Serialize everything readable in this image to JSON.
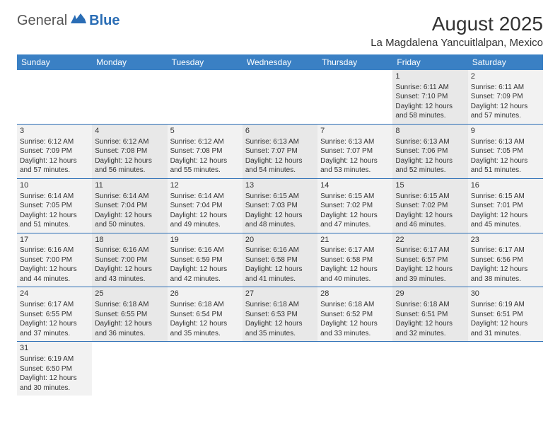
{
  "logo": {
    "text1": "General",
    "text2": "Blue"
  },
  "title": "August 2025",
  "location": "La Magdalena Yancuitlalpan, Mexico",
  "dayHeaders": [
    "Sunday",
    "Monday",
    "Tuesday",
    "Wednesday",
    "Thursday",
    "Friday",
    "Saturday"
  ],
  "colors": {
    "headerBg": "#3a80c4",
    "border": "#2a6db5",
    "grey0": "#f2f2f2",
    "grey1": "#e8e8e8",
    "text": "#333333",
    "logoBlue": "#2a6db5"
  },
  "startWeekday": 5,
  "days": [
    {
      "n": 1,
      "sr": "6:11 AM",
      "ss": "7:10 PM",
      "dl": "12 hours and 58 minutes."
    },
    {
      "n": 2,
      "sr": "6:11 AM",
      "ss": "7:09 PM",
      "dl": "12 hours and 57 minutes."
    },
    {
      "n": 3,
      "sr": "6:12 AM",
      "ss": "7:09 PM",
      "dl": "12 hours and 57 minutes."
    },
    {
      "n": 4,
      "sr": "6:12 AM",
      "ss": "7:08 PM",
      "dl": "12 hours and 56 minutes."
    },
    {
      "n": 5,
      "sr": "6:12 AM",
      "ss": "7:08 PM",
      "dl": "12 hours and 55 minutes."
    },
    {
      "n": 6,
      "sr": "6:13 AM",
      "ss": "7:07 PM",
      "dl": "12 hours and 54 minutes."
    },
    {
      "n": 7,
      "sr": "6:13 AM",
      "ss": "7:07 PM",
      "dl": "12 hours and 53 minutes."
    },
    {
      "n": 8,
      "sr": "6:13 AM",
      "ss": "7:06 PM",
      "dl": "12 hours and 52 minutes."
    },
    {
      "n": 9,
      "sr": "6:13 AM",
      "ss": "7:05 PM",
      "dl": "12 hours and 51 minutes."
    },
    {
      "n": 10,
      "sr": "6:14 AM",
      "ss": "7:05 PM",
      "dl": "12 hours and 51 minutes."
    },
    {
      "n": 11,
      "sr": "6:14 AM",
      "ss": "7:04 PM",
      "dl": "12 hours and 50 minutes."
    },
    {
      "n": 12,
      "sr": "6:14 AM",
      "ss": "7:04 PM",
      "dl": "12 hours and 49 minutes."
    },
    {
      "n": 13,
      "sr": "6:15 AM",
      "ss": "7:03 PM",
      "dl": "12 hours and 48 minutes."
    },
    {
      "n": 14,
      "sr": "6:15 AM",
      "ss": "7:02 PM",
      "dl": "12 hours and 47 minutes."
    },
    {
      "n": 15,
      "sr": "6:15 AM",
      "ss": "7:02 PM",
      "dl": "12 hours and 46 minutes."
    },
    {
      "n": 16,
      "sr": "6:15 AM",
      "ss": "7:01 PM",
      "dl": "12 hours and 45 minutes."
    },
    {
      "n": 17,
      "sr": "6:16 AM",
      "ss": "7:00 PM",
      "dl": "12 hours and 44 minutes."
    },
    {
      "n": 18,
      "sr": "6:16 AM",
      "ss": "7:00 PM",
      "dl": "12 hours and 43 minutes."
    },
    {
      "n": 19,
      "sr": "6:16 AM",
      "ss": "6:59 PM",
      "dl": "12 hours and 42 minutes."
    },
    {
      "n": 20,
      "sr": "6:16 AM",
      "ss": "6:58 PM",
      "dl": "12 hours and 41 minutes."
    },
    {
      "n": 21,
      "sr": "6:17 AM",
      "ss": "6:58 PM",
      "dl": "12 hours and 40 minutes."
    },
    {
      "n": 22,
      "sr": "6:17 AM",
      "ss": "6:57 PM",
      "dl": "12 hours and 39 minutes."
    },
    {
      "n": 23,
      "sr": "6:17 AM",
      "ss": "6:56 PM",
      "dl": "12 hours and 38 minutes."
    },
    {
      "n": 24,
      "sr": "6:17 AM",
      "ss": "6:55 PM",
      "dl": "12 hours and 37 minutes."
    },
    {
      "n": 25,
      "sr": "6:18 AM",
      "ss": "6:55 PM",
      "dl": "12 hours and 36 minutes."
    },
    {
      "n": 26,
      "sr": "6:18 AM",
      "ss": "6:54 PM",
      "dl": "12 hours and 35 minutes."
    },
    {
      "n": 27,
      "sr": "6:18 AM",
      "ss": "6:53 PM",
      "dl": "12 hours and 35 minutes."
    },
    {
      "n": 28,
      "sr": "6:18 AM",
      "ss": "6:52 PM",
      "dl": "12 hours and 33 minutes."
    },
    {
      "n": 29,
      "sr": "6:18 AM",
      "ss": "6:51 PM",
      "dl": "12 hours and 32 minutes."
    },
    {
      "n": 30,
      "sr": "6:19 AM",
      "ss": "6:51 PM",
      "dl": "12 hours and 31 minutes."
    },
    {
      "n": 31,
      "sr": "6:19 AM",
      "ss": "6:50 PM",
      "dl": "12 hours and 30 minutes."
    }
  ],
  "labels": {
    "sunrise": "Sunrise:",
    "sunset": "Sunset:",
    "daylight": "Daylight:"
  }
}
